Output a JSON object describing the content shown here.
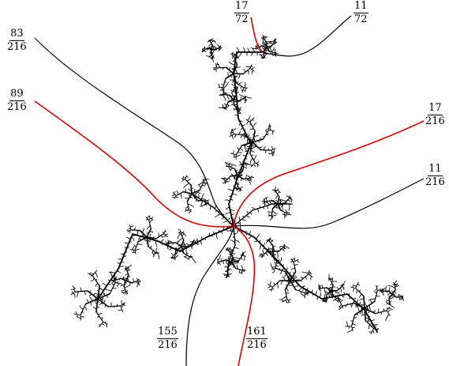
{
  "colors": {
    "background": "#ffffff",
    "fractal": "#000000",
    "black_ray": "#000000",
    "red_ray": "#dd0000"
  },
  "labels": {
    "ray_17_72": {
      "num": "17",
      "den": "72"
    },
    "ray_11_72": {
      "num": "11",
      "den": "72"
    },
    "ray_83_216": {
      "num": "83",
      "den": "216"
    },
    "ray_89_216": {
      "num": "89",
      "den": "216"
    },
    "ray_17_216": {
      "num": "17",
      "den": "216"
    },
    "ray_11_216": {
      "num": "11",
      "den": "216"
    },
    "ray_155_216": {
      "num": "155",
      "den": "216"
    },
    "ray_161_216": {
      "num": "161",
      "den": "216"
    }
  }
}
